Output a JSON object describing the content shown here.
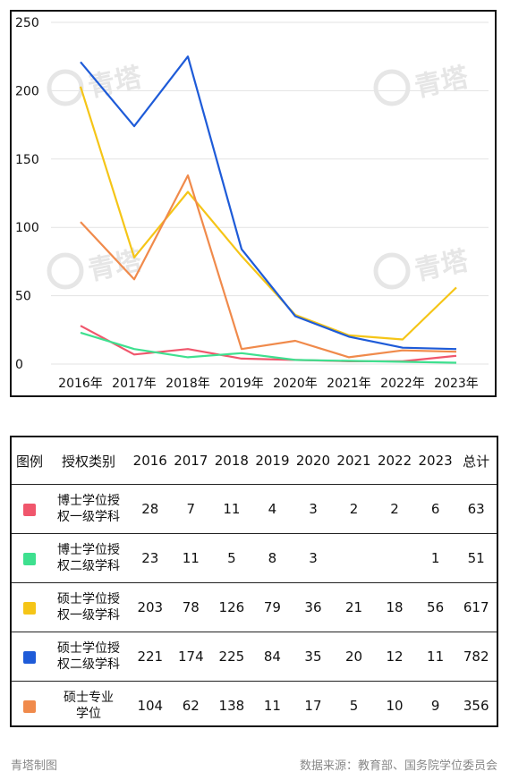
{
  "chart_data": {
    "type": "line",
    "x": [
      "2016年",
      "2017年",
      "2018年",
      "2019年",
      "2020年",
      "2021年",
      "2022年",
      "2023年"
    ],
    "ylim": [
      0,
      250
    ],
    "yticks": [
      "0",
      "50",
      "100",
      "150",
      "200",
      "250"
    ],
    "grid": true,
    "series": [
      {
        "name": "博士学位授权一级学科",
        "color": "#f0566c",
        "values": [
          28,
          7,
          11,
          4,
          3,
          2,
          2,
          6
        ]
      },
      {
        "name": "博士学位授权二级学科",
        "color": "#3ee08f",
        "values": [
          23,
          11,
          5,
          8,
          3,
          null,
          null,
          1
        ]
      },
      {
        "name": "硕士学位授权一级学科",
        "color": "#f5c517",
        "values": [
          203,
          78,
          126,
          79,
          36,
          21,
          18,
          56
        ]
      },
      {
        "name": "硕士学位授权二级学科",
        "color": "#1e5bd8",
        "values": [
          221,
          174,
          225,
          84,
          35,
          20,
          12,
          11
        ]
      },
      {
        "name": "硕士专业学位",
        "color": "#f08a4b",
        "values": [
          104,
          62,
          138,
          11,
          17,
          5,
          10,
          9
        ]
      }
    ],
    "watermark": "青塔"
  },
  "table": {
    "header_legend": "图例",
    "header_category": "授权类别",
    "years": [
      "2016",
      "2017",
      "2018",
      "2019",
      "2020",
      "2021",
      "2022",
      "2023"
    ],
    "header_total": "总计",
    "rows": [
      {
        "line1": "博士学位授",
        "line2": "权一级学科",
        "color": "#f0566c",
        "values": [
          "28",
          "7",
          "11",
          "4",
          "3",
          "2",
          "2",
          "6"
        ],
        "total": "63"
      },
      {
        "line1": "博士学位授",
        "line2": "权二级学科",
        "color": "#3ee08f",
        "values": [
          "23",
          "11",
          "5",
          "8",
          "3",
          "",
          "",
          "1"
        ],
        "total": "51"
      },
      {
        "line1": "硕士学位授",
        "line2": "权一级学科",
        "color": "#f5c517",
        "values": [
          "203",
          "78",
          "126",
          "79",
          "36",
          "21",
          "18",
          "56"
        ],
        "total": "617"
      },
      {
        "line1": "硕士学位授",
        "line2": "权二级学科",
        "color": "#1e5bd8",
        "values": [
          "221",
          "174",
          "225",
          "84",
          "35",
          "20",
          "12",
          "11"
        ],
        "total": "782"
      },
      {
        "line1": "硕士专业",
        "line2": "学位",
        "color": "#f08a4b",
        "values": [
          "104",
          "62",
          "138",
          "11",
          "17",
          "5",
          "10",
          "9"
        ],
        "total": "356"
      }
    ]
  },
  "footer": {
    "left": "青塔制图",
    "right": "数据来源：教育部、国务院学位委员会"
  }
}
